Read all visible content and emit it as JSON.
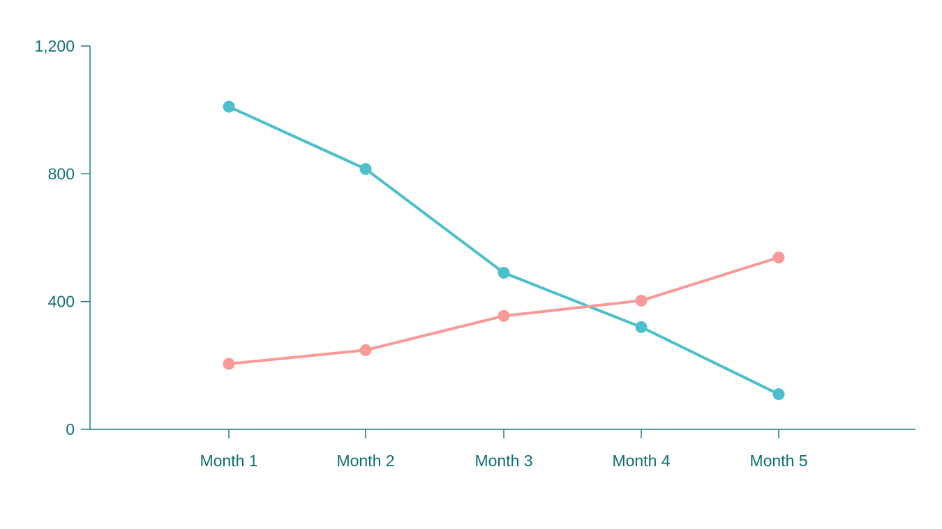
{
  "chart_data": {
    "type": "line",
    "title": "",
    "xlabel": "",
    "ylabel": "",
    "categories": [
      "Month 1",
      "Month 2",
      "Month 3",
      "Month 4",
      "Month 5"
    ],
    "ylim": [
      0,
      1200
    ],
    "yticks": [
      0,
      400,
      800,
      1200
    ],
    "ytick_labels": [
      "0",
      "400",
      "800",
      "1,200"
    ],
    "grid": false,
    "legend": "none",
    "series": [
      {
        "color": "#4BBFCB",
        "values": [
          1010,
          815,
          490,
          320,
          110
        ]
      },
      {
        "color": "#FA9A98",
        "values": [
          205,
          248,
          355,
          403,
          538
        ]
      }
    ],
    "axis_color": "#1E7A80",
    "label_color": "#0F6F74"
  }
}
